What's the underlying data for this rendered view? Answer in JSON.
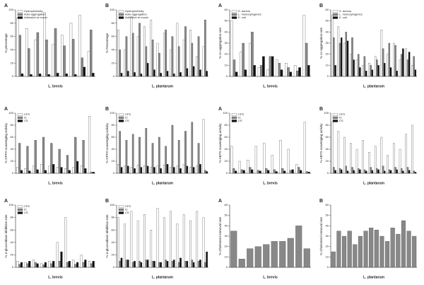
{
  "chart_data": [
    {
      "type": "bar",
      "title": "A",
      "ylabel": "% percentage",
      "xlabel": "L. brevis",
      "categories": [
        null,
        null,
        null,
        null,
        null,
        null,
        null,
        null,
        null
      ],
      "ylim": [
        0,
        100
      ],
      "yticks": [
        0,
        20,
        40,
        60,
        80,
        100
      ],
      "series": [
        {
          "name": "Hydrophobicity",
          "color": "#ffffff",
          "values": [
            88,
            72,
            55,
            96,
            48,
            62,
            80,
            92,
            38
          ]
        },
        {
          "name": "Auto-aggregation",
          "color": "#888888",
          "values": [
            62,
            42,
            66,
            55,
            72,
            46,
            56,
            28,
            70
          ]
        },
        {
          "name": "Adhesion to mucin",
          "color": "#111111",
          "values": [
            4,
            3,
            4,
            3,
            5,
            4,
            3,
            14,
            5
          ]
        }
      ]
    },
    {
      "type": "bar",
      "title": "B",
      "ylabel": "% Percentage",
      "xlabel": "L. plantarum",
      "categories": [
        null,
        null,
        null,
        null,
        null,
        null,
        null,
        null,
        null,
        null,
        null,
        null,
        null,
        null
      ],
      "ylim": [
        0,
        100
      ],
      "yticks": [
        0,
        20,
        40,
        60,
        80,
        100
      ],
      "series": [
        {
          "name": "Hydrophobicity",
          "color": "#ffffff",
          "values": [
            70,
            40,
            90,
            60,
            75,
            85,
            50,
            65,
            40,
            80,
            55,
            70,
            30,
            45
          ]
        },
        {
          "name": "Auto-aggregation",
          "color": "#888888",
          "values": [
            40,
            60,
            65,
            80,
            45,
            55,
            35,
            70,
            60,
            45,
            75,
            50,
            60,
            85
          ]
        },
        {
          "name": "Adhesion to mucin",
          "color": "#111111",
          "values": [
            5,
            8,
            6,
            4,
            20,
            10,
            5,
            8,
            4,
            6,
            12,
            15,
            10,
            8
          ]
        }
      ]
    },
    {
      "type": "bar",
      "title": "A",
      "ylabel": "% co-aggregation rate",
      "xlabel": "L. brevis",
      "categories": [
        null,
        null,
        null,
        null,
        null,
        null,
        null,
        null,
        null
      ],
      "ylim": [
        0,
        60
      ],
      "yticks": [
        0,
        10,
        20,
        30,
        40,
        50,
        60
      ],
      "series": [
        {
          "name": "S. aureus",
          "color": "#ffffff",
          "values": [
            50,
            22,
            30,
            8,
            6,
            15,
            12,
            10,
            55
          ]
        },
        {
          "name": "L. monocytogenes",
          "color": "#888888",
          "values": [
            15,
            30,
            40,
            10,
            18,
            12,
            8,
            5,
            30
          ]
        },
        {
          "name": "E. coli",
          "color": "#111111",
          "values": [
            4,
            6,
            10,
            18,
            18,
            6,
            4,
            8,
            10
          ]
        }
      ]
    },
    {
      "type": "bar",
      "title": "B",
      "ylabel": "% co-aggregation rate",
      "xlabel": "L. plantarum",
      "categories": [
        null,
        null,
        null,
        null,
        null,
        null,
        null,
        null,
        null,
        null,
        null,
        null,
        null,
        null
      ],
      "ylim": [
        0,
        60
      ],
      "yticks": [
        0,
        10,
        20,
        30,
        40,
        50,
        60
      ],
      "series": [
        {
          "name": "S. aureus",
          "color": "#ffffff",
          "values": [
            55,
            45,
            30,
            20,
            15,
            10,
            12,
            18,
            42,
            20,
            30,
            15,
            25,
            10
          ]
        },
        {
          "name": "L. monocytogenes",
          "color": "#888888",
          "values": [
            35,
            30,
            40,
            35,
            20,
            18,
            10,
            15,
            25,
            30,
            28,
            20,
            15,
            18
          ]
        },
        {
          "name": "E. coli",
          "color": "#111111",
          "values": [
            10,
            35,
            32,
            15,
            8,
            5,
            6,
            10,
            12,
            8,
            5,
            25,
            22,
            6
          ]
        }
      ]
    },
    {
      "type": "bar",
      "title": "A",
      "ylabel": "% DPPH scavenging activity",
      "xlabel": "L. brevis",
      "categories": [
        null,
        null,
        null,
        null,
        null,
        null,
        null,
        null,
        null,
        null
      ],
      "ylim": [
        0,
        100
      ],
      "yticks": [
        0,
        20,
        40,
        60,
        80,
        100
      ],
      "series": [
        {
          "name": "CFS",
          "color": "#ffffff",
          "values": [
            10,
            8,
            12,
            15,
            12,
            10,
            8,
            10,
            12,
            95
          ]
        },
        {
          "name": "IC",
          "color": "#888888",
          "values": [
            50,
            45,
            55,
            60,
            50,
            40,
            30,
            60,
            55,
            2
          ]
        },
        {
          "name": "CS",
          "color": "#111111",
          "values": [
            5,
            4,
            6,
            5,
            15,
            10,
            5,
            20,
            8,
            2
          ]
        }
      ]
    },
    {
      "type": "bar",
      "title": "B",
      "ylabel": "% DPPH scavenging activity",
      "xlabel": "L. plantarum",
      "categories": [
        null,
        null,
        null,
        null,
        null,
        null,
        null,
        null,
        null,
        null,
        null,
        null,
        null,
        null
      ],
      "ylim": [
        0,
        100
      ],
      "yticks": [
        0,
        20,
        40,
        60,
        80,
        100
      ],
      "series": [
        {
          "name": "CFS",
          "color": "#ffffff",
          "values": [
            15,
            12,
            10,
            14,
            12,
            10,
            12,
            14,
            10,
            12,
            15,
            10,
            12,
            90
          ]
        },
        {
          "name": "IC",
          "color": "#888888",
          "values": [
            70,
            55,
            65,
            60,
            75,
            50,
            60,
            45,
            80,
            55,
            70,
            85,
            50,
            5
          ]
        },
        {
          "name": "CS",
          "color": "#111111",
          "values": [
            10,
            12,
            8,
            10,
            12,
            10,
            8,
            15,
            10,
            8,
            12,
            10,
            15,
            3
          ]
        }
      ]
    },
    {
      "type": "bar",
      "title": "A",
      "ylabel": "% ABTS scavenging activity",
      "xlabel": "L. brevis",
      "categories": [
        null,
        null,
        null,
        null,
        null,
        null,
        null,
        null,
        null,
        null
      ],
      "ylim": [
        0,
        100
      ],
      "yticks": [
        0,
        20,
        40,
        60,
        80,
        100
      ],
      "series": [
        {
          "name": "CFS",
          "color": "#ffffff",
          "values": [
            45,
            20,
            22,
            45,
            50,
            30,
            55,
            40,
            15,
            85
          ]
        },
        {
          "name": "IC",
          "color": "#888888",
          "values": [
            8,
            6,
            10,
            5,
            8,
            6,
            8,
            5,
            10,
            3
          ]
        },
        {
          "name": "CS",
          "color": "#111111",
          "values": [
            4,
            5,
            6,
            4,
            5,
            3,
            4,
            6,
            5,
            2
          ]
        }
      ]
    },
    {
      "type": "bar",
      "title": "B",
      "ylabel": "% ABTS scavenging activity",
      "xlabel": "L. plantarum",
      "categories": [
        null,
        null,
        null,
        null,
        null,
        null,
        null,
        null,
        null,
        null,
        null,
        null,
        null,
        null
      ],
      "ylim": [
        0,
        100
      ],
      "yticks": [
        0,
        20,
        40,
        60,
        80,
        100
      ],
      "series": [
        {
          "name": "CFS",
          "color": "#ffffff",
          "values": [
            85,
            70,
            60,
            50,
            40,
            55,
            35,
            45,
            60,
            30,
            50,
            40,
            65,
            80
          ]
        },
        {
          "name": "IC",
          "color": "#888888",
          "values": [
            10,
            8,
            12,
            10,
            8,
            6,
            10,
            8,
            12,
            6,
            10,
            8,
            10,
            4
          ]
        },
        {
          "name": "CS",
          "color": "#111111",
          "values": [
            5,
            6,
            4,
            5,
            6,
            4,
            5,
            6,
            4,
            5,
            6,
            4,
            5,
            2
          ]
        }
      ]
    },
    {
      "type": "bar",
      "title": "A",
      "ylabel": "% α-glucosidase inhibition rate",
      "xlabel": "L. brevis",
      "categories": [
        null,
        null,
        null,
        null,
        null,
        null,
        null,
        null,
        null,
        null
      ],
      "ylim": [
        0,
        100
      ],
      "yticks": [
        0,
        20,
        40,
        60,
        80,
        100
      ],
      "series": [
        {
          "name": "CFS",
          "color": "#ffffff",
          "values": [
            10,
            8,
            12,
            6,
            10,
            40,
            80,
            12,
            20,
            10
          ]
        },
        {
          "name": "IC",
          "color": "#888888",
          "values": [
            5,
            6,
            8,
            4,
            6,
            10,
            8,
            5,
            8,
            6
          ]
        },
        {
          "name": "CS",
          "color": "#111111",
          "values": [
            8,
            10,
            6,
            8,
            10,
            25,
            10,
            8,
            12,
            10
          ]
        }
      ]
    },
    {
      "type": "bar",
      "title": "B",
      "ylabel": "% α-glucosidase inhibition rate",
      "xlabel": "L. plantarum",
      "categories": [
        null,
        null,
        null,
        null,
        null,
        null,
        null,
        null,
        null,
        null,
        null,
        null,
        null,
        null
      ],
      "ylim": [
        0,
        100
      ],
      "yticks": [
        0,
        20,
        40,
        60,
        80,
        100
      ],
      "series": [
        {
          "name": "CFS",
          "color": "#ffffff",
          "values": [
            80,
            70,
            90,
            75,
            85,
            60,
            95,
            80,
            90,
            70,
            85,
            75,
            90,
            80
          ]
        },
        {
          "name": "IC",
          "color": "#888888",
          "values": [
            10,
            12,
            8,
            10,
            12,
            10,
            8,
            12,
            10,
            8,
            10,
            12,
            10,
            8
          ]
        },
        {
          "name": "CS",
          "color": "#111111",
          "values": [
            15,
            12,
            10,
            8,
            12,
            10,
            8,
            10,
            12,
            15,
            10,
            8,
            12,
            25
          ]
        }
      ]
    },
    {
      "type": "bar",
      "title": "A",
      "ylabel": "% Cholesterol removal rate",
      "xlabel": "L. brevis",
      "categories": [
        null,
        null,
        null,
        null,
        null,
        null,
        null,
        null,
        null,
        null
      ],
      "ylim": [
        0,
        60
      ],
      "yticks": [
        0,
        10,
        20,
        30,
        40,
        50,
        60
      ],
      "series": [
        {
          "color": "#888888",
          "values": [
            35,
            8,
            18,
            20,
            22,
            25,
            25,
            28,
            40,
            18
          ]
        }
      ]
    },
    {
      "type": "bar",
      "title": "B",
      "ylabel": "% Cholesterol removal rate",
      "xlabel": "L. plantarum",
      "categories": [
        null,
        null,
        null,
        null,
        null,
        null,
        null,
        null,
        null,
        null,
        null,
        null,
        null,
        null,
        null,
        null
      ],
      "ylim": [
        0,
        60
      ],
      "yticks": [
        0,
        10,
        20,
        30,
        40,
        50,
        60
      ],
      "series": [
        {
          "color": "#888888",
          "values": [
            15,
            35,
            30,
            35,
            22,
            30,
            35,
            38,
            36,
            30,
            25,
            38,
            32,
            45,
            35,
            30
          ]
        }
      ]
    }
  ]
}
